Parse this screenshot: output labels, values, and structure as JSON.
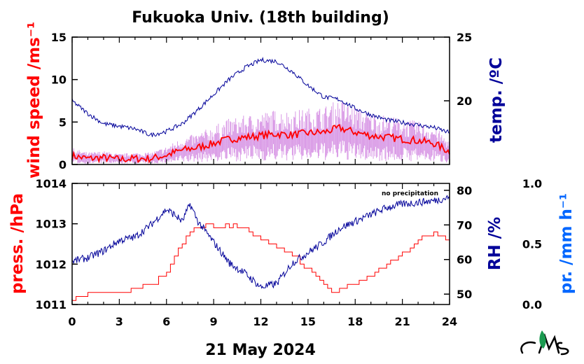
{
  "title": "Fukuoka Univ. (18th building)",
  "xlabel": "21 May 2024",
  "note": "no precipitation",
  "colors": {
    "wind": "#ff0000",
    "wind_range": "#cc77dd",
    "temp": "#000099",
    "pressure": "#ff0000",
    "rh": "#000099",
    "precip": "#0066ff",
    "axis": "#000000"
  },
  "x_axis": {
    "min": 0,
    "max": 24,
    "ticks": [
      "0",
      "3",
      "6",
      "9",
      "12",
      "15",
      "18",
      "21",
      "24"
    ]
  },
  "chart_data": [
    {
      "type": "line",
      "panel": "top",
      "x": [
        0,
        1,
        2,
        3,
        4,
        5,
        6,
        7,
        8,
        9,
        10,
        11,
        12,
        13,
        14,
        15,
        16,
        17,
        18,
        19,
        20,
        21,
        22,
        23,
        24
      ],
      "series": [
        {
          "name": "wind speed",
          "axis": "left",
          "values": [
            1.0,
            0.7,
            0.8,
            0.6,
            0.7,
            0.7,
            1.1,
            1.7,
            2.0,
            2.5,
            3.0,
            3.2,
            3.4,
            3.6,
            3.5,
            3.7,
            3.8,
            4.3,
            3.8,
            3.4,
            3.2,
            3.0,
            2.8,
            2.5,
            1.5
          ]
        },
        {
          "name": "temperature",
          "axis": "right",
          "values": [
            20.0,
            19.0,
            18.2,
            18.0,
            17.8,
            17.3,
            17.6,
            18.2,
            19.3,
            20.5,
            21.7,
            22.6,
            23.2,
            23.1,
            22.3,
            21.2,
            20.3,
            20.1,
            19.4,
            18.9,
            18.5,
            18.3,
            18.1,
            17.9,
            17.5
          ]
        }
      ],
      "left_axis": {
        "label": "wind speed /ms⁻¹",
        "range": [
          0,
          15
        ],
        "ticks": [
          "0",
          "5",
          "10",
          "15"
        ]
      },
      "right_axis": {
        "label": "temp. /ºC",
        "range": [
          15,
          25
        ],
        "ticks": [
          "20",
          "25"
        ]
      }
    },
    {
      "type": "line",
      "panel": "bottom",
      "x": [
        0,
        1,
        2,
        3,
        4,
        5,
        6,
        6.5,
        7,
        7.5,
        8,
        9,
        10,
        11,
        12,
        13,
        14,
        15,
        16,
        16.5,
        17,
        18,
        19,
        20,
        21,
        22,
        23,
        24
      ],
      "series": [
        {
          "name": "pressure",
          "axis": "left",
          "values": [
            1011.1,
            1011.3,
            1011.3,
            1011.3,
            1011.4,
            1011.5,
            1011.8,
            1012.2,
            1012.5,
            1012.8,
            1012.9,
            1012.95,
            1012.95,
            1012.9,
            1012.6,
            1012.4,
            1012.2,
            1011.9,
            1011.5,
            1011.3,
            1011.4,
            1011.5,
            1011.7,
            1012.0,
            1012.3,
            1012.6,
            1012.8,
            1012.5
          ]
        },
        {
          "name": "relative humidity",
          "axis": "right",
          "values": [
            59.5,
            60.5,
            62.5,
            65.5,
            66.5,
            70,
            74.5,
            73,
            71,
            76,
            71,
            65,
            59,
            56,
            52,
            53,
            59,
            62,
            65,
            67,
            69,
            71,
            73,
            75,
            76,
            76.5,
            77,
            78
          ]
        }
      ],
      "left_axis": {
        "label": "press. /hPa",
        "range": [
          1011,
          1014
        ],
        "ticks": [
          "1011",
          "1012",
          "1013",
          "1014"
        ]
      },
      "right_axis": {
        "label": "RH /%",
        "range": [
          47,
          82
        ],
        "ticks": [
          "50",
          "60",
          "70",
          "80"
        ]
      },
      "precip_axis": {
        "label": "pr. /mm h⁻¹",
        "range": [
          0,
          1
        ],
        "ticks": [
          "0.0",
          "0.5",
          "1.0"
        ]
      }
    }
  ]
}
